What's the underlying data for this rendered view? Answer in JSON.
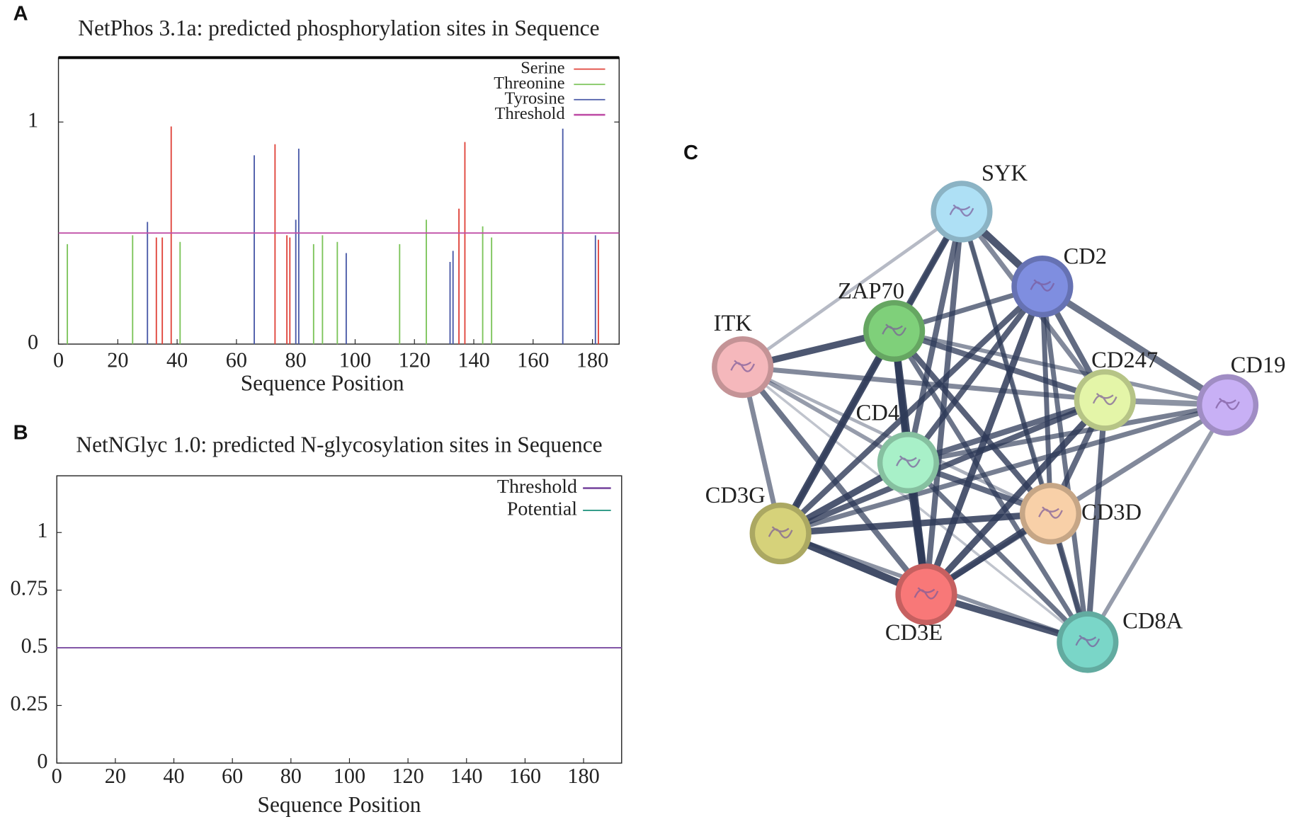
{
  "panels": [
    "A",
    "B",
    "C"
  ],
  "chart_data": [
    {
      "type": "bar",
      "title": "NetPhos 3.1a: predicted phosphorylation sites in Sequence",
      "x_label": "Sequence Position",
      "xlim": [
        0,
        189
      ],
      "xticks": [
        0,
        20,
        40,
        60,
        80,
        100,
        120,
        140,
        160,
        180
      ],
      "ylim": [
        0,
        1.29
      ],
      "yticks": [
        0,
        1
      ],
      "series": [
        {
          "name": "Serine",
          "color": "#e0453c",
          "x": [
            33,
            35,
            38,
            73,
            77,
            78,
            135,
            137,
            182
          ],
          "values": [
            0.48,
            0.48,
            0.98,
            0.9,
            0.49,
            0.48,
            0.61,
            0.91,
            0.47
          ]
        },
        {
          "name": "Threonine",
          "color": "#7cc45a",
          "x": [
            3,
            25,
            41,
            86,
            89,
            94,
            115,
            124,
            143,
            146
          ],
          "values": [
            0.45,
            0.49,
            0.46,
            0.45,
            0.49,
            0.46,
            0.45,
            0.56,
            0.53,
            0.48
          ]
        },
        {
          "name": "Tyrosine",
          "color": "#4a5aa8",
          "x": [
            30,
            66,
            80,
            81,
            97,
            132,
            133,
            170,
            181
          ],
          "values": [
            0.55,
            0.85,
            0.56,
            0.88,
            0.41,
            0.37,
            0.42,
            0.97,
            0.49
          ]
        }
      ],
      "threshold": {
        "name": "Threshold",
        "color": "#c050a8",
        "value": 0.5
      }
    },
    {
      "type": "line",
      "title": "NetNGlyc 1.0: predicted N-glycosylation sites in Sequence",
      "x_label": "Sequence Position",
      "xlim": [
        0,
        193
      ],
      "xticks": [
        0,
        20,
        40,
        60,
        80,
        100,
        120,
        140,
        160,
        180
      ],
      "ylim": [
        0,
        1.246
      ],
      "yticks": [
        0,
        0.25,
        0.5,
        0.75,
        1
      ],
      "threshold": {
        "name": "Threshold",
        "color": "#7a4aa0",
        "value": 0.5
      },
      "series": [
        {
          "name": "Potential",
          "color": "#1a8f7a",
          "x": [],
          "values": []
        }
      ]
    }
  ],
  "network": {
    "nodes": [
      {
        "label": "SYK",
        "color": "#aee0f5"
      },
      {
        "label": "CD2",
        "color": "#7f8ee0"
      },
      {
        "label": "ZAP70",
        "color": "#7fd07a"
      },
      {
        "label": "ITK",
        "color": "#f5b8bc"
      },
      {
        "label": "CD247",
        "color": "#e4f5a8"
      },
      {
        "label": "CD19",
        "color": "#c8b0f5"
      },
      {
        "label": "CD4",
        "color": "#a8f0c8"
      },
      {
        "label": "CD3G",
        "color": "#d6d27a"
      },
      {
        "label": "CD3D",
        "color": "#f8d0a8"
      },
      {
        "label": "CD3E",
        "color": "#f87878"
      },
      {
        "label": "CD8A",
        "color": "#7ad6c8"
      }
    ]
  }
}
